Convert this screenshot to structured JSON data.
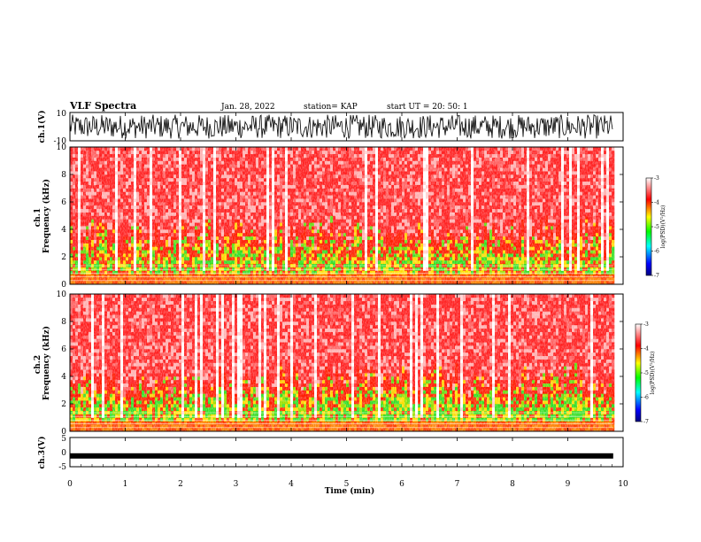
{
  "header": {
    "title": "VLF Spectra",
    "date": "Jan. 28, 2022",
    "station": "station= KAP",
    "start": "start UT = 20: 50: 1"
  },
  "chart_data": [
    {
      "type": "line",
      "panel": "ch1-waveform",
      "ylabel": "ch.1(V)",
      "ylim": [
        -10,
        10
      ],
      "yticks": [
        10,
        -10
      ],
      "series": [
        {
          "values": []
        }
      ],
      "description_values": {
        "range": [
          -8,
          7
        ]
      }
    },
    {
      "type": "heatmap",
      "panel": "ch1-spectrogram",
      "ylabel": "ch.1\nFrequency (kHz)",
      "ylabel_lines": [
        "ch.1",
        "Frequency (kHz)"
      ],
      "ylim": [
        0,
        10
      ],
      "yticks": [
        0,
        2,
        4,
        6,
        8,
        10
      ],
      "colorbar": {
        "label": "log(PSD)(V²/Hz)",
        "ticks": [
          "-3",
          "-4",
          "-5",
          "-6",
          "-7"
        ],
        "range": [
          -7,
          -3
        ],
        "colors": [
          "#000080",
          "#0000ff",
          "#00ffff",
          "#00ff00",
          "#ffff00",
          "#ff0000",
          "#ffffff"
        ]
      }
    },
    {
      "type": "heatmap",
      "panel": "ch2-spectrogram",
      "ylabel": "ch.2\nFrequency (kHz)",
      "ylabel_lines": [
        "ch.2",
        "Frequency (kHz)"
      ],
      "ylim": [
        0,
        10
      ],
      "yticks": [
        0,
        2,
        4,
        6,
        8,
        10
      ],
      "colorbar": {
        "label": "log(PSD)(V²/Hz)",
        "ticks": [
          "-3",
          "-4",
          "-5",
          "-6",
          "-7"
        ],
        "range": [
          -7,
          -3
        ],
        "colors": [
          "#000080",
          "#0000ff",
          "#00ffff",
          "#00ff00",
          "#ffff00",
          "#ff0000",
          "#ffffff"
        ]
      }
    },
    {
      "type": "line",
      "panel": "ch3-waveform",
      "ylabel": "ch.3(V)",
      "ylim": [
        -5,
        5
      ],
      "yticks": [
        5,
        0,
        -5
      ],
      "series": [
        {
          "values": []
        }
      ],
      "description_values": {
        "mean": -1.3
      }
    }
  ],
  "xaxis": {
    "label": "Time (min)",
    "xlim": [
      0,
      10
    ],
    "ticks": [
      "0",
      "1",
      "2",
      "3",
      "4",
      "5",
      "6",
      "7",
      "8",
      "9",
      "10"
    ],
    "data_end": 9.82
  }
}
